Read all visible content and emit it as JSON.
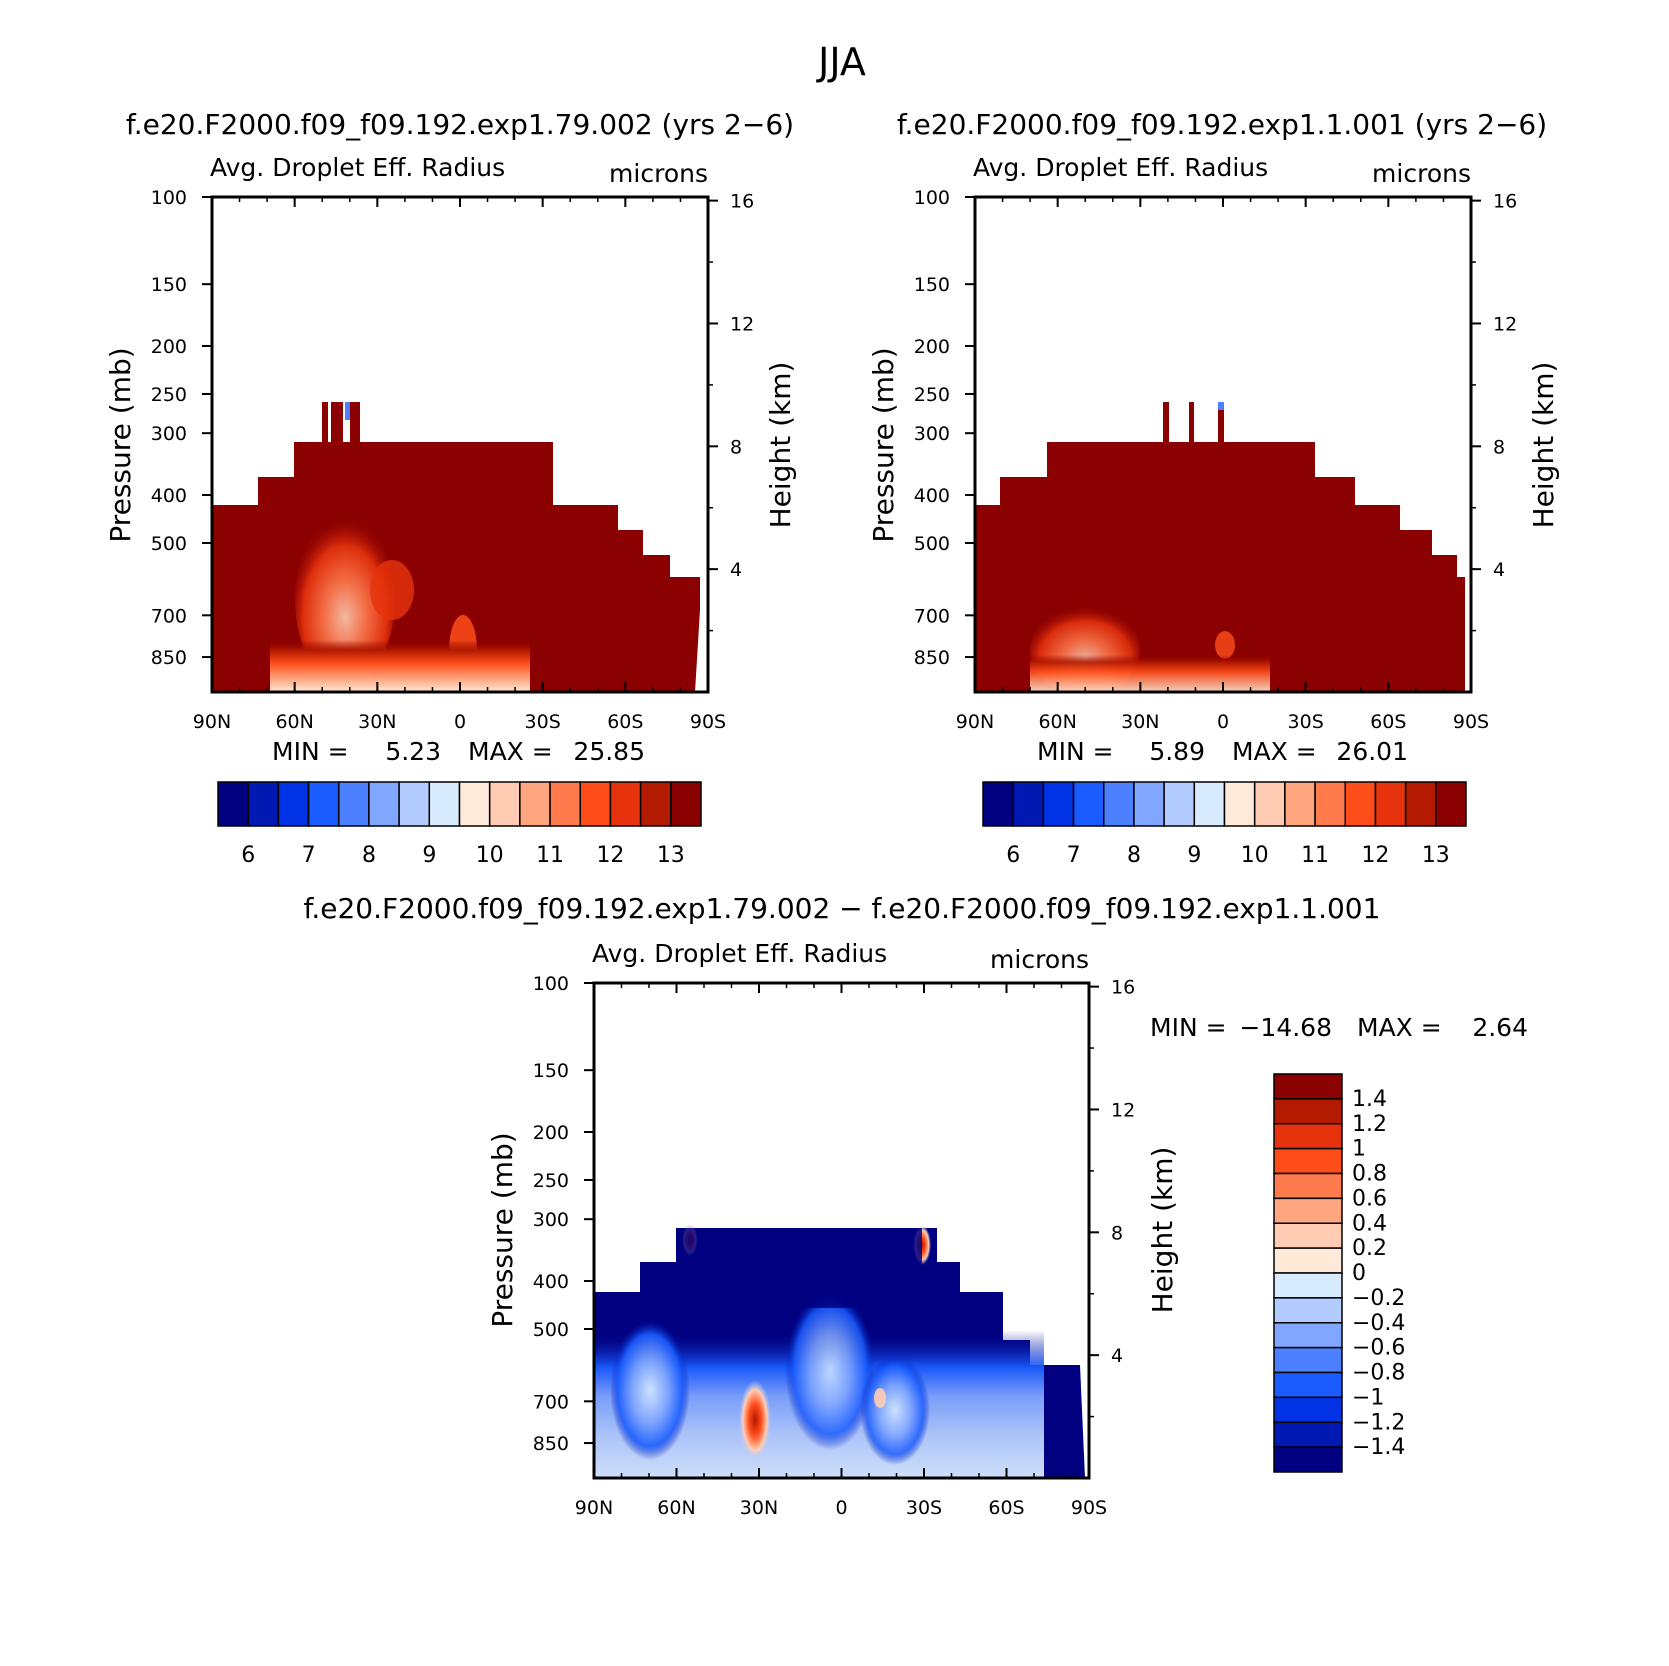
{
  "figure_title": "JJA",
  "colors": {
    "seq_palette": [
      "#000080",
      "#0019b3",
      "#0033e6",
      "#1a5cff",
      "#4d80ff",
      "#80a6ff",
      "#b3ccff",
      "#d9ebff",
      "#ffe9d9",
      "#ffccb3",
      "#ffa680",
      "#ff7a4d",
      "#ff4d1a",
      "#e6330d",
      "#b31a00",
      "#8b0000"
    ],
    "diff_palette": [
      "#000080",
      "#0019b3",
      "#0033e6",
      "#1a5cff",
      "#4d80ff",
      "#80a6ff",
      "#b3ccff",
      "#d9ebff",
      "#ffe9d9",
      "#ffccb3",
      "#ffa680",
      "#ff7a4d",
      "#ff4d1a",
      "#e6330d",
      "#b31a00",
      "#8b0000"
    ]
  },
  "panels": [
    {
      "case_title": "f.e20.F2000.f09_f09.192.exp1.79.002 (yrs 2−6)",
      "title_left": "Avg. Droplet Eff. Radius",
      "title_right": "microns",
      "ylabel": "Pressure (mb)",
      "ylabel2": "Height (km)",
      "min_label": "MIN =",
      "min_value": "5.23",
      "max_label": "MAX =",
      "max_value": "25.85"
    },
    {
      "case_title": "f.e20.F2000.f09_f09.192.exp1.1.001 (yrs 2−6)",
      "title_left": "Avg. Droplet Eff. Radius",
      "title_right": "microns",
      "ylabel": "Pressure (mb)",
      "ylabel2": "Height (km)",
      "min_label": "MIN =",
      "min_value": "5.89",
      "max_label": "MAX =",
      "max_value": "26.01"
    },
    {
      "case_title": "f.e20.F2000.f09_f09.192.exp1.79.002 − f.e20.F2000.f09_f09.192.exp1.1.001",
      "title_left": "Avg. Droplet Eff. Radius",
      "title_right": "microns",
      "ylabel": "Pressure (mb)",
      "ylabel2": "Height (km)",
      "min_label": "MIN =",
      "min_value": "−14.68",
      "max_label": "MAX =",
      "max_value": "2.64"
    }
  ],
  "chart_data": [
    {
      "type": "heatmap",
      "title": "Avg. Droplet Eff. Radius",
      "units": "microns",
      "xlabel": "",
      "ylabel": "Pressure (mb)",
      "ylabel_right": "Height (km)",
      "x_ticks": [
        "90N",
        "60N",
        "30N",
        "0",
        "30S",
        "60S",
        "90S"
      ],
      "x_values": [
        90,
        60,
        30,
        0,
        -30,
        -60,
        -90
      ],
      "y_ticks": [
        100,
        150,
        200,
        250,
        300,
        400,
        500,
        700,
        850
      ],
      "y_right_ticks": [
        16,
        12,
        8,
        4
      ],
      "ylim": [
        100,
        1000
      ],
      "yscale": "log",
      "colorbar_levels": [
        6,
        7,
        8,
        9,
        10,
        11,
        12,
        13
      ],
      "min": 5.23,
      "max": 25.85,
      "dominant_value": "> 13",
      "cloud_top_by_lat": [
        {
          "lat": 90,
          "p": 400
        },
        {
          "lat": 75,
          "p": 400
        },
        {
          "lat": 72,
          "p": 350
        },
        {
          "lat": 60,
          "p": 300
        },
        {
          "lat": 47,
          "p": 250
        },
        {
          "lat": 35,
          "p": 300
        },
        {
          "lat": -35,
          "p": 300
        },
        {
          "lat": -42,
          "p": 390
        },
        {
          "lat": -58,
          "p": 470
        },
        {
          "lat": -66,
          "p": 520
        },
        {
          "lat": -76,
          "p": 570
        },
        {
          "lat": -86,
          "p": 630
        }
      ]
    },
    {
      "type": "heatmap",
      "title": "Avg. Droplet Eff. Radius",
      "units": "microns",
      "xlabel": "",
      "ylabel": "Pressure (mb)",
      "ylabel_right": "Height (km)",
      "x_ticks": [
        "90N",
        "60N",
        "30N",
        "0",
        "30S",
        "60S",
        "90S"
      ],
      "x_values": [
        90,
        60,
        30,
        0,
        -30,
        -60,
        -90
      ],
      "y_ticks": [
        100,
        150,
        200,
        250,
        300,
        400,
        500,
        700,
        850
      ],
      "y_right_ticks": [
        16,
        12,
        8,
        4
      ],
      "ylim": [
        100,
        1000
      ],
      "yscale": "log",
      "colorbar_levels": [
        6,
        7,
        8,
        9,
        10,
        11,
        12,
        13
      ],
      "min": 5.89,
      "max": 26.01,
      "dominant_value": "> 13",
      "cloud_top_by_lat": [
        {
          "lat": 90,
          "p": 400
        },
        {
          "lat": 78,
          "p": 350
        },
        {
          "lat": 62,
          "p": 300
        },
        {
          "lat": 20,
          "p": 250
        },
        {
          "lat": -30,
          "p": 300
        },
        {
          "lat": -45,
          "p": 360
        },
        {
          "lat": -58,
          "p": 420
        },
        {
          "lat": -70,
          "p": 470
        },
        {
          "lat": -80,
          "p": 530
        },
        {
          "lat": -88,
          "p": 610
        }
      ]
    },
    {
      "type": "heatmap",
      "title": "Avg. Droplet Eff. Radius",
      "units": "microns",
      "xlabel": "",
      "ylabel": "Pressure (mb)",
      "ylabel_right": "Height (km)",
      "x_ticks": [
        "90N",
        "60N",
        "30N",
        "0",
        "30S",
        "60S",
        "90S"
      ],
      "x_values": [
        90,
        60,
        30,
        0,
        -30,
        -60,
        -90
      ],
      "y_ticks": [
        100,
        150,
        200,
        250,
        300,
        400,
        500,
        700,
        850
      ],
      "y_right_ticks": [
        16,
        12,
        8,
        4
      ],
      "ylim": [
        100,
        1000
      ],
      "yscale": "log",
      "colorbar_levels": [
        1.4,
        1.2,
        1,
        0.8,
        0.6,
        0.4,
        0.2,
        0,
        -0.2,
        -0.4,
        -0.6,
        -0.8,
        -1,
        -1.2,
        -1.4
      ],
      "colorbar_labels": [
        "1.4",
        "1.2",
        "1",
        "0.8",
        "0.6",
        "0.4",
        "0.2",
        "0",
        "−0.2",
        "−0.4",
        "−0.6",
        "−0.8",
        "−1",
        "−1.2",
        "−1.4"
      ],
      "min": -14.68,
      "max": 2.64,
      "dominant_value": "< -1.4",
      "cloud_top_by_lat": [
        {
          "lat": 90,
          "p": 400
        },
        {
          "lat": 72,
          "p": 350
        },
        {
          "lat": 62,
          "p": 300
        },
        {
          "lat": -35,
          "p": 300
        },
        {
          "lat": -42,
          "p": 360
        },
        {
          "lat": -58,
          "p": 420
        },
        {
          "lat": -70,
          "p": 500
        },
        {
          "lat": -80,
          "p": 570
        },
        {
          "lat": -88,
          "p": 620
        }
      ]
    }
  ]
}
